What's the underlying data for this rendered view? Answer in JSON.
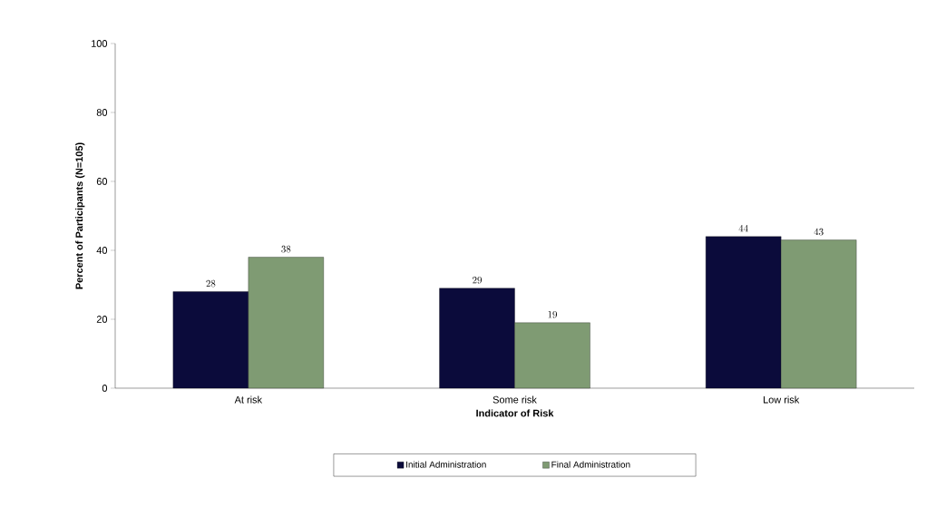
{
  "chart_data": {
    "type": "bar",
    "xlabel": "Indicator of Risk",
    "ylabel": "Percent of Participants (N=105)",
    "categories": [
      "At risk",
      "Some risk",
      "Low risk"
    ],
    "series": [
      {
        "name": "Initial Administration",
        "color": "#0b0b3b",
        "values": [
          28,
          29,
          44
        ]
      },
      {
        "name": "Final Administration",
        "color": "#7f9b73",
        "values": [
          38,
          19,
          43
        ]
      }
    ],
    "ylim": [
      0,
      100
    ],
    "yticks": [
      0,
      20,
      40,
      60,
      80,
      100
    ],
    "grid": false,
    "legend": "bottom",
    "data_labels": true
  }
}
